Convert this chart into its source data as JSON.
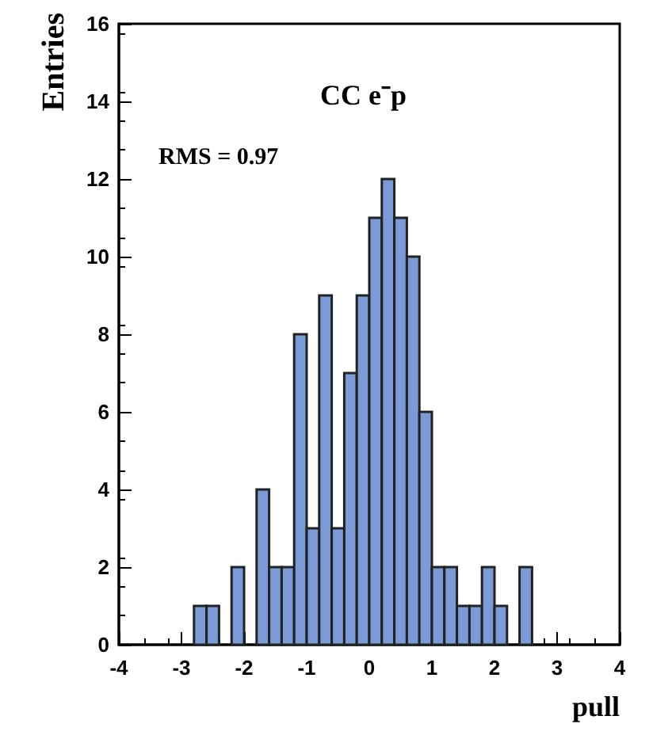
{
  "chart_data": {
    "type": "histogram",
    "title": "CC e⁻p",
    "xlabel": "pull",
    "ylabel": "Entries",
    "annotations": [
      "RMS = 0.97"
    ],
    "bins": [
      -4,
      -3.8,
      -3.6,
      -3.4,
      -3.2,
      -3,
      -2.8,
      -2.6,
      -2.4,
      -2.2,
      -2,
      -1.8,
      -1.6,
      -1.4,
      -1.2,
      -1,
      -0.8,
      -0.6,
      -0.4,
      -0.2,
      0,
      0.2,
      0.4,
      0.6,
      0.8,
      1,
      1.2,
      1.4,
      1.6,
      1.8,
      2,
      2.2,
      2.4,
      2.6,
      2.8,
      3,
      3.2,
      3.4,
      3.6,
      3.8,
      4
    ],
    "values": [
      0,
      0,
      0,
      0,
      0,
      0,
      1,
      1,
      0,
      2,
      0,
      4,
      2,
      2,
      8,
      3,
      9,
      3,
      7,
      9,
      11,
      12,
      11,
      10,
      6,
      2,
      2,
      1,
      1,
      2,
      1,
      0,
      2,
      0,
      0,
      0,
      0,
      0,
      0,
      0
    ],
    "color": "#7b9bd6",
    "xlim": [
      -4,
      4
    ],
    "xticks": [
      -4,
      -3,
      -2,
      -1,
      0,
      1,
      2,
      3,
      4
    ],
    "ylim": [
      0,
      16
    ],
    "yticks": [
      0,
      2,
      4,
      6,
      8,
      10,
      12,
      14,
      16
    ],
    "grid": false
  }
}
